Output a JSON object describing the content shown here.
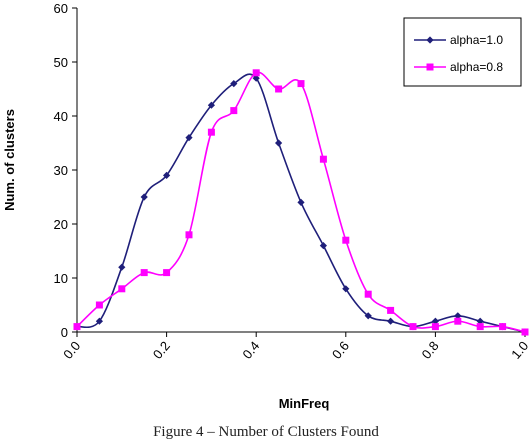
{
  "caption": "Figure 4 – Number of Clusters Found",
  "chart_data": {
    "type": "line",
    "title": "",
    "xlabel": "MinFreq",
    "ylabel": "Num. of clusters",
    "xlim": [
      0,
      1
    ],
    "ylim": [
      0,
      60
    ],
    "x_ticks": [
      "0.0",
      "0.2",
      "0.4",
      "0.6",
      "0.8",
      "1.0"
    ],
    "y_ticks": [
      "0",
      "10",
      "20",
      "30",
      "40",
      "50",
      "60"
    ],
    "grid": false,
    "legend_position": "top-right",
    "x": [
      0.0,
      0.05,
      0.1,
      0.15,
      0.2,
      0.25,
      0.3,
      0.35,
      0.4,
      0.45,
      0.5,
      0.55,
      0.6,
      0.65,
      0.7,
      0.75,
      0.8,
      0.85,
      0.9,
      0.95,
      1.0
    ],
    "series": [
      {
        "name": "alpha=1.0",
        "color": "#1f1f7a",
        "marker": "diamond",
        "values": [
          1,
          2,
          12,
          25,
          29,
          36,
          42,
          46,
          47,
          35,
          24,
          16,
          8,
          3,
          2,
          1,
          2,
          3,
          2,
          1,
          0
        ]
      },
      {
        "name": "alpha=0.8",
        "color": "#ff00ff",
        "marker": "square",
        "values": [
          1,
          5,
          8,
          11,
          11,
          18,
          37,
          41,
          48,
          45,
          46,
          32,
          17,
          7,
          4,
          1,
          1,
          2,
          1,
          1,
          0
        ]
      }
    ]
  }
}
